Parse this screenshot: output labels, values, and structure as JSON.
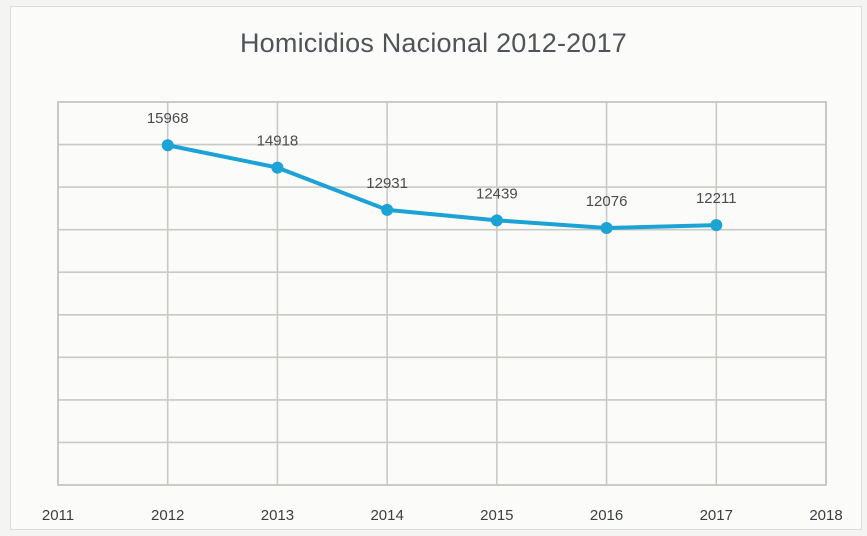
{
  "chart_data": {
    "type": "line",
    "title": "Homicidios Nacional 2012-2017",
    "xlabel": "",
    "ylabel": "",
    "x": [
      2012,
      2013,
      2014,
      2015,
      2016,
      2017
    ],
    "xlim": [
      2011,
      2018
    ],
    "x_ticks": [
      "2011",
      "2012",
      "2013",
      "2014",
      "2015",
      "2016",
      "2017",
      "2018"
    ],
    "series": [
      {
        "values": [
          15968,
          14918,
          12931,
          12439,
          12076,
          12211
        ],
        "color": "#1ba3d6"
      }
    ],
    "data_labels": [
      "15968",
      "14918",
      "12931",
      "12439",
      "12076",
      "12211"
    ],
    "ylim": [
      0,
      18000
    ],
    "y_gridlines": [
      0,
      2000,
      4000,
      6000,
      8000,
      10000,
      12000,
      14000,
      16000,
      18000
    ],
    "grid": true,
    "legend": "none"
  }
}
